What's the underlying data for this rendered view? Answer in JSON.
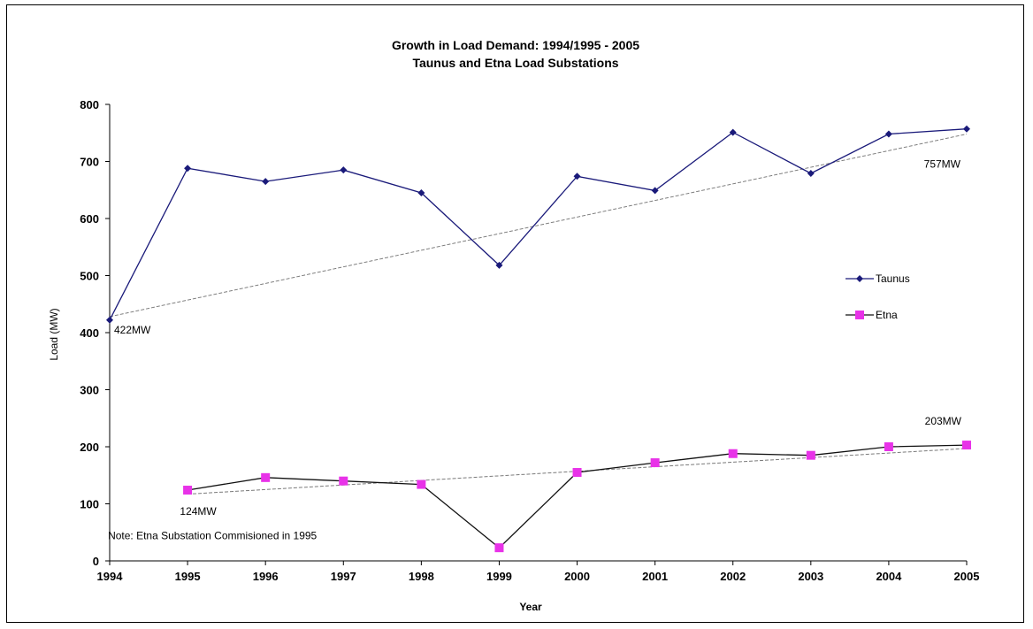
{
  "chart_data": {
    "type": "line",
    "title": "Growth in Load Demand: 1994/1995 - 2005",
    "subtitle": "Taunus and Etna Load Substations",
    "xlabel": "Year",
    "ylabel": "Load (MW)",
    "x": [
      1994,
      1995,
      1996,
      1997,
      1998,
      1999,
      2000,
      2001,
      2002,
      2003,
      2004,
      2005
    ],
    "ylim": [
      0,
      800
    ],
    "yticks": [
      0,
      100,
      200,
      300,
      400,
      500,
      600,
      700,
      800
    ],
    "grid": false,
    "legend_position": "right",
    "series": [
      {
        "name": "Taunus",
        "color": "#1a1a7a",
        "marker": "diamond",
        "x": [
          1994,
          1995,
          1996,
          1997,
          1998,
          1999,
          2000,
          2001,
          2002,
          2003,
          2004,
          2005
        ],
        "values": [
          422,
          688,
          665,
          685,
          645,
          518,
          674,
          649,
          751,
          679,
          748,
          757
        ],
        "trendline": {
          "from": [
            1994,
            428
          ],
          "to": [
            2005,
            748
          ]
        }
      },
      {
        "name": "Etna",
        "color": "#e832e8",
        "line_color": "#111111",
        "marker": "square",
        "x": [
          1995,
          1996,
          1997,
          1998,
          1999,
          2000,
          2001,
          2002,
          2003,
          2004,
          2005
        ],
        "values": [
          124,
          146,
          140,
          134,
          23,
          155,
          172,
          188,
          185,
          200,
          203
        ],
        "trendline": {
          "from": [
            1995,
            117
          ],
          "to": [
            2005,
            197
          ]
        }
      }
    ],
    "annotations": [
      {
        "text": "422MW",
        "x": 1994,
        "y": 422
      },
      {
        "text": "757MW",
        "x": 2005,
        "y": 757
      },
      {
        "text": "124MW",
        "x": 1995,
        "y": 124
      },
      {
        "text": "203MW",
        "x": 2005,
        "y": 203
      },
      {
        "text": "Note: Etna Substation Commisioned in 1995",
        "x": 1995,
        "y": 38
      }
    ]
  }
}
